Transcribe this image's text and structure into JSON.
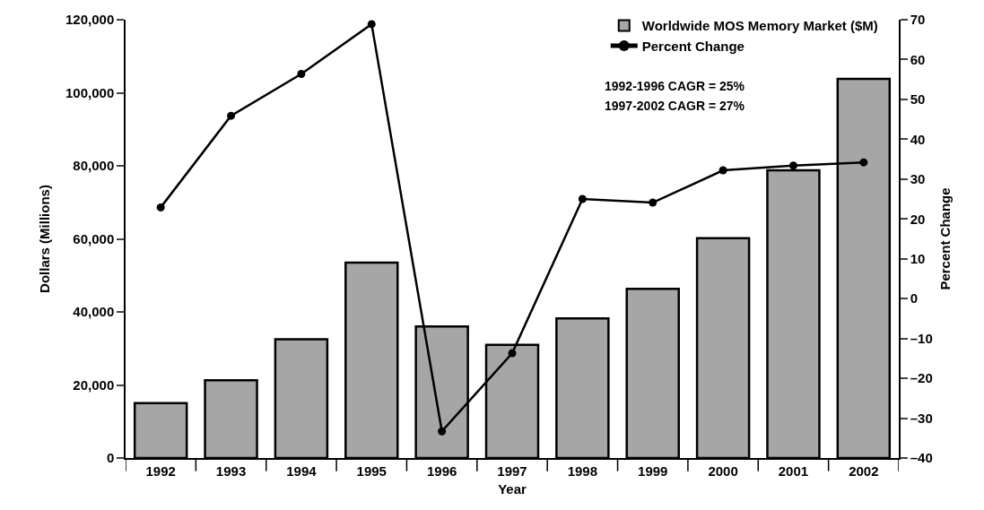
{
  "chart_data": {
    "type": "bar",
    "xlabel": "Year",
    "ylabel": "Dollars (Millions)",
    "y2label": "Percent Change",
    "categories": [
      "1992",
      "1993",
      "1994",
      "1995",
      "1996",
      "1997",
      "1998",
      "1999",
      "2000",
      "2001",
      "2002"
    ],
    "series": [
      {
        "name": "Worldwide MOS Memory Market ($M)",
        "color": "#a6a6a6",
        "values": [
          15000,
          21300,
          32500,
          53500,
          36000,
          31000,
          38200,
          46300,
          60200,
          78800,
          103800
        ]
      },
      {
        "name": "Percent Change",
        "type": "line",
        "axis": "y2",
        "color": "#000000",
        "marker": "circle",
        "values": [
          22.9,
          45.9,
          56.4,
          68.9,
          -33.3,
          -13.7,
          25.0,
          24.1,
          32.2,
          33.4,
          34.2
        ]
      }
    ],
    "ylim": [
      0,
      120000
    ],
    "yticks": [
      0,
      {
        "value": 20000,
        "label": "20,000"
      },
      {
        "value": 40000,
        "label": "40,000"
      },
      {
        "value": 60000,
        "label": "60,000"
      },
      {
        "value": 80000,
        "label": "80,000"
      },
      {
        "value": 100000,
        "label": "100,000"
      },
      {
        "value": 120000,
        "label": "120,000"
      }
    ],
    "y2lim": [
      -40,
      70
    ],
    "y2ticks": [
      {
        "value": -40,
        "label": "–40"
      },
      {
        "value": -30,
        "label": "–30"
      },
      {
        "value": -20,
        "label": "–20"
      },
      {
        "value": -10,
        "label": "–10"
      },
      0,
      10,
      20,
      30,
      40,
      50,
      60,
      70
    ],
    "annotations": [
      "1992-1996 CAGR = 25%",
      "1997-2002 CAGR = 27%"
    ],
    "legend": "top right"
  }
}
